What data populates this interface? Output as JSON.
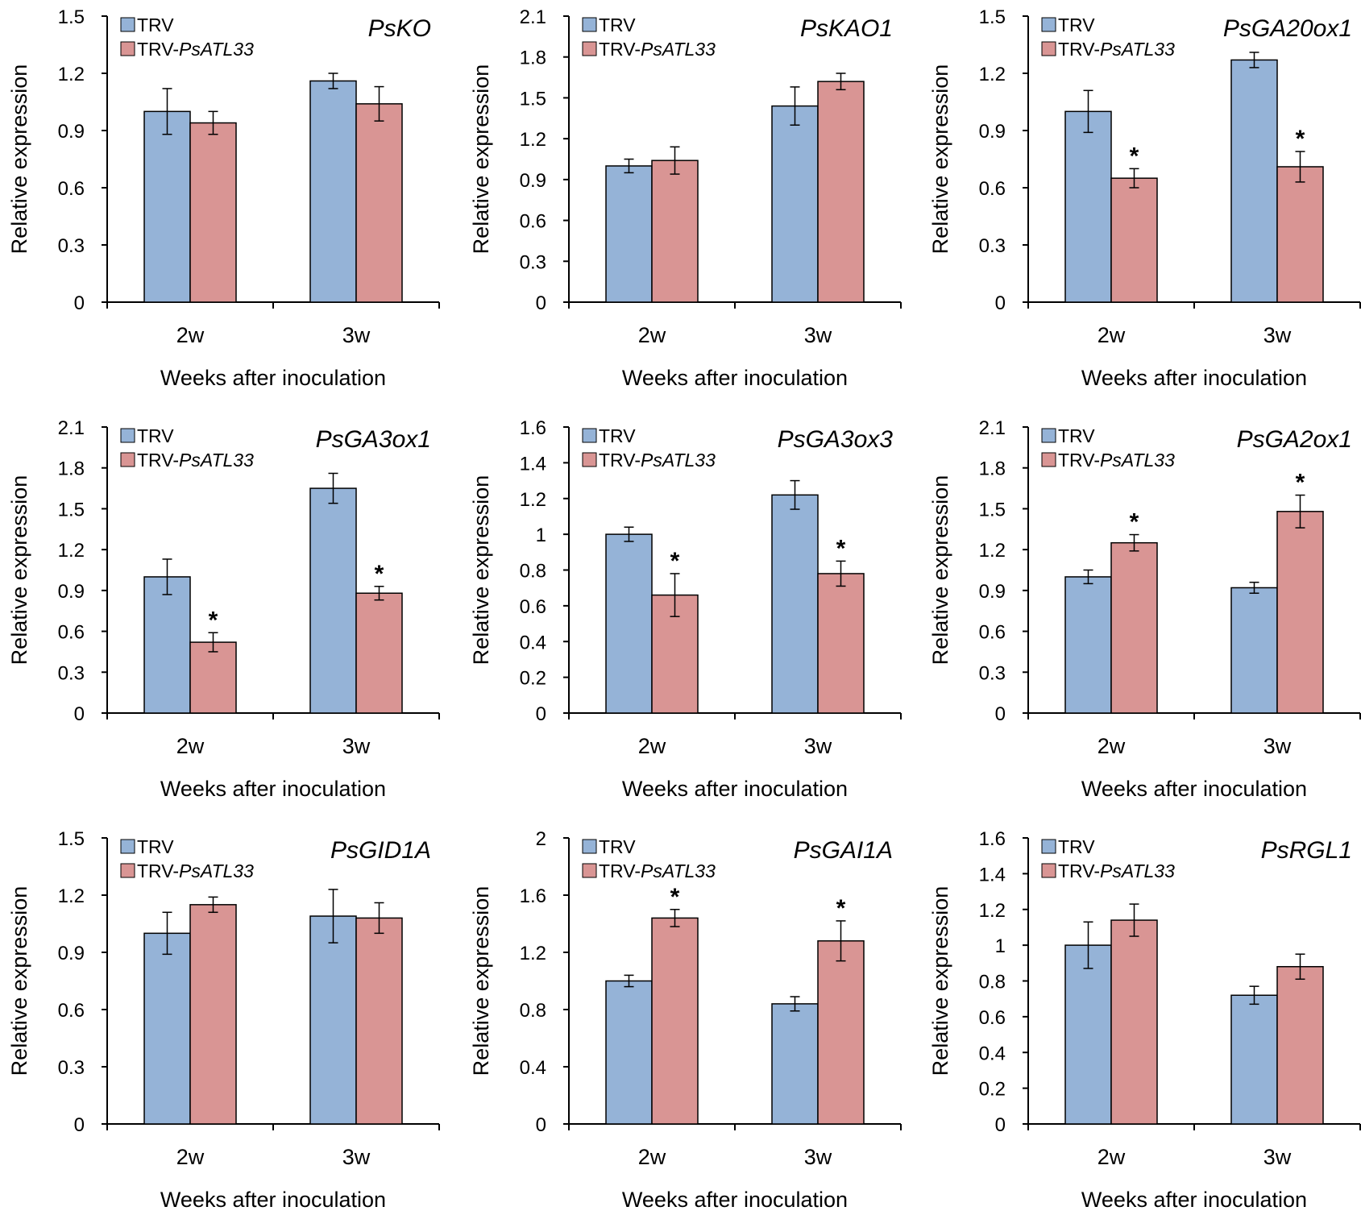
{
  "figure": {
    "legend_prefix": "TRV-",
    "legend_colors": {
      "TRV": "#95b3d7",
      "TRV-PsATL33": "#d99594"
    }
  },
  "chart_data": [
    {
      "type": "bar",
      "title": "PsKO",
      "xlabel": "Weeks after inoculation",
      "ylabel": "Relative expression",
      "categories": [
        "2w",
        "3w"
      ],
      "ylim": [
        0,
        1.5
      ],
      "yticks": [
        0,
        0.3,
        0.6,
        0.9,
        1.2,
        1.5
      ],
      "ytick_labels": [
        "0",
        "0.3",
        "0.6",
        "0.9",
        "1.2",
        "1.5"
      ],
      "series": [
        {
          "name": "TRV",
          "italic_part": "",
          "color": "#95b3d7",
          "values": [
            1.0,
            1.16
          ],
          "errors": [
            0.12,
            0.04
          ],
          "significant": [
            false,
            false
          ]
        },
        {
          "name": "TRV-PsATL33",
          "italic_part": "PsATL33",
          "color": "#d99594",
          "values": [
            0.94,
            1.04
          ],
          "errors": [
            0.06,
            0.09
          ],
          "significant": [
            false,
            false
          ]
        }
      ]
    },
    {
      "type": "bar",
      "title": "PsKAO1",
      "xlabel": "Weeks after inoculation",
      "ylabel": "Relative expression",
      "categories": [
        "2w",
        "3w"
      ],
      "ylim": [
        0,
        2.1
      ],
      "yticks": [
        0,
        0.3,
        0.6,
        0.9,
        1.2,
        1.5,
        1.8,
        2.1
      ],
      "ytick_labels": [
        "0",
        "0.3",
        "0.6",
        "0.9",
        "1.2",
        "1.5",
        "1.8",
        "2.1"
      ],
      "series": [
        {
          "name": "TRV",
          "italic_part": "",
          "color": "#95b3d7",
          "values": [
            1.0,
            1.44
          ],
          "errors": [
            0.05,
            0.14
          ],
          "significant": [
            false,
            false
          ]
        },
        {
          "name": "TRV-PsATL33",
          "italic_part": "PsATL33",
          "color": "#d99594",
          "values": [
            1.04,
            1.62
          ],
          "errors": [
            0.1,
            0.06
          ],
          "significant": [
            false,
            false
          ]
        }
      ]
    },
    {
      "type": "bar",
      "title": "PsGA20ox1",
      "xlabel": "Weeks after inoculation",
      "ylabel": "Relative expression",
      "categories": [
        "2w",
        "3w"
      ],
      "ylim": [
        0,
        1.5
      ],
      "yticks": [
        0,
        0.3,
        0.6,
        0.9,
        1.2,
        1.5
      ],
      "ytick_labels": [
        "0",
        "0.3",
        "0.6",
        "0.9",
        "1.2",
        "1.5"
      ],
      "series": [
        {
          "name": "TRV",
          "italic_part": "",
          "color": "#95b3d7",
          "values": [
            1.0,
            1.27
          ],
          "errors": [
            0.11,
            0.04
          ],
          "significant": [
            false,
            false
          ]
        },
        {
          "name": "TRV-PsATL33",
          "italic_part": "PsATL33",
          "color": "#d99594",
          "values": [
            0.65,
            0.71
          ],
          "errors": [
            0.05,
            0.08
          ],
          "significant": [
            true,
            true
          ]
        }
      ]
    },
    {
      "type": "bar",
      "title": "PsGA3ox1",
      "xlabel": "Weeks after inoculation",
      "ylabel": "Relative expression",
      "categories": [
        "2w",
        "3w"
      ],
      "ylim": [
        0,
        2.1
      ],
      "yticks": [
        0,
        0.3,
        0.6,
        0.9,
        1.2,
        1.5,
        1.8,
        2.1
      ],
      "ytick_labels": [
        "0",
        "0.3",
        "0.6",
        "0.9",
        "1.2",
        "1.5",
        "1.8",
        "2.1"
      ],
      "series": [
        {
          "name": "TRV",
          "italic_part": "",
          "color": "#95b3d7",
          "values": [
            1.0,
            1.65
          ],
          "errors": [
            0.13,
            0.11
          ],
          "significant": [
            false,
            false
          ]
        },
        {
          "name": "TRV-PsATL33",
          "italic_part": "PsATL33",
          "color": "#d99594",
          "values": [
            0.52,
            0.88
          ],
          "errors": [
            0.07,
            0.05
          ],
          "significant": [
            true,
            true
          ]
        }
      ]
    },
    {
      "type": "bar",
      "title": "PsGA3ox3",
      "xlabel": "Weeks after inoculation",
      "ylabel": "Relative expression",
      "categories": [
        "2w",
        "3w"
      ],
      "ylim": [
        0,
        1.6
      ],
      "yticks": [
        0,
        0.2,
        0.4,
        0.6,
        0.8,
        1.0,
        1.2,
        1.4,
        1.6
      ],
      "ytick_labels": [
        "0",
        "0.2",
        "0.4",
        "0.6",
        "0.8",
        "1",
        "1.2",
        "1.4",
        "1.6"
      ],
      "series": [
        {
          "name": "TRV",
          "italic_part": "",
          "color": "#95b3d7",
          "values": [
            1.0,
            1.22
          ],
          "errors": [
            0.04,
            0.08
          ],
          "significant": [
            false,
            false
          ]
        },
        {
          "name": "TRV-PsATL33",
          "italic_part": "PsATL33",
          "color": "#d99594",
          "values": [
            0.66,
            0.78
          ],
          "errors": [
            0.12,
            0.07
          ],
          "significant": [
            true,
            true
          ]
        }
      ]
    },
    {
      "type": "bar",
      "title": "PsGA2ox1",
      "xlabel": "Weeks after inoculation",
      "ylabel": "Relative expression",
      "categories": [
        "2w",
        "3w"
      ],
      "ylim": [
        0,
        2.1
      ],
      "yticks": [
        0,
        0.3,
        0.6,
        0.9,
        1.2,
        1.5,
        1.8,
        2.1
      ],
      "ytick_labels": [
        "0",
        "0.3",
        "0.6",
        "0.9",
        "1.2",
        "1.5",
        "1.8",
        "2.1"
      ],
      "series": [
        {
          "name": "TRV",
          "italic_part": "",
          "color": "#95b3d7",
          "values": [
            1.0,
            0.92
          ],
          "errors": [
            0.05,
            0.04
          ],
          "significant": [
            false,
            false
          ]
        },
        {
          "name": "TRV-PsATL33",
          "italic_part": "PsATL33",
          "color": "#d99594",
          "values": [
            1.25,
            1.48
          ],
          "errors": [
            0.06,
            0.12
          ],
          "significant": [
            true,
            true
          ]
        }
      ]
    },
    {
      "type": "bar",
      "title": "PsGID1A",
      "xlabel": "Weeks after inoculation",
      "ylabel": "Relative expression",
      "categories": [
        "2w",
        "3w"
      ],
      "ylim": [
        0,
        1.5
      ],
      "yticks": [
        0,
        0.3,
        0.6,
        0.9,
        1.2,
        1.5
      ],
      "ytick_labels": [
        "0",
        "0.3",
        "0.6",
        "0.9",
        "1.2",
        "1.5"
      ],
      "series": [
        {
          "name": "TRV",
          "italic_part": "",
          "color": "#95b3d7",
          "values": [
            1.0,
            1.09
          ],
          "errors": [
            0.11,
            0.14
          ],
          "significant": [
            false,
            false
          ]
        },
        {
          "name": "TRV-PsATL33",
          "italic_part": "PsATL33",
          "color": "#d99594",
          "values": [
            1.15,
            1.08
          ],
          "errors": [
            0.04,
            0.08
          ],
          "significant": [
            false,
            false
          ]
        }
      ]
    },
    {
      "type": "bar",
      "title": "PsGAI1A",
      "xlabel": "Weeks after inoculation",
      "ylabel": "Relative expression",
      "categories": [
        "2w",
        "3w"
      ],
      "ylim": [
        0,
        2.0
      ],
      "yticks": [
        0,
        0.4,
        0.8,
        1.2,
        1.6,
        2.0
      ],
      "ytick_labels": [
        "0",
        "0.4",
        "0.8",
        "1.2",
        "1.6",
        "2"
      ],
      "series": [
        {
          "name": "TRV",
          "italic_part": "",
          "color": "#95b3d7",
          "values": [
            1.0,
            0.84
          ],
          "errors": [
            0.04,
            0.05
          ],
          "significant": [
            false,
            false
          ]
        },
        {
          "name": "TRV-PsATL33",
          "italic_part": "PsATL33",
          "color": "#d99594",
          "values": [
            1.44,
            1.28
          ],
          "errors": [
            0.06,
            0.14
          ],
          "significant": [
            true,
            true
          ]
        }
      ]
    },
    {
      "type": "bar",
      "title": "PsRGL1",
      "xlabel": "Weeks after inoculation",
      "ylabel": "Relative expression",
      "categories": [
        "2w",
        "3w"
      ],
      "ylim": [
        0,
        1.6
      ],
      "yticks": [
        0,
        0.2,
        0.4,
        0.6,
        0.8,
        1.0,
        1.2,
        1.4,
        1.6
      ],
      "ytick_labels": [
        "0",
        "0.2",
        "0.4",
        "0.6",
        "0.8",
        "1",
        "1.2",
        "1.4",
        "1.6"
      ],
      "series": [
        {
          "name": "TRV",
          "italic_part": "",
          "color": "#95b3d7",
          "values": [
            1.0,
            0.72
          ],
          "errors": [
            0.13,
            0.05
          ],
          "significant": [
            false,
            false
          ]
        },
        {
          "name": "TRV-PsATL33",
          "italic_part": "PsATL33",
          "color": "#d99594",
          "values": [
            1.14,
            0.88
          ],
          "errors": [
            0.09,
            0.07
          ],
          "significant": [
            false,
            false
          ]
        }
      ]
    }
  ]
}
